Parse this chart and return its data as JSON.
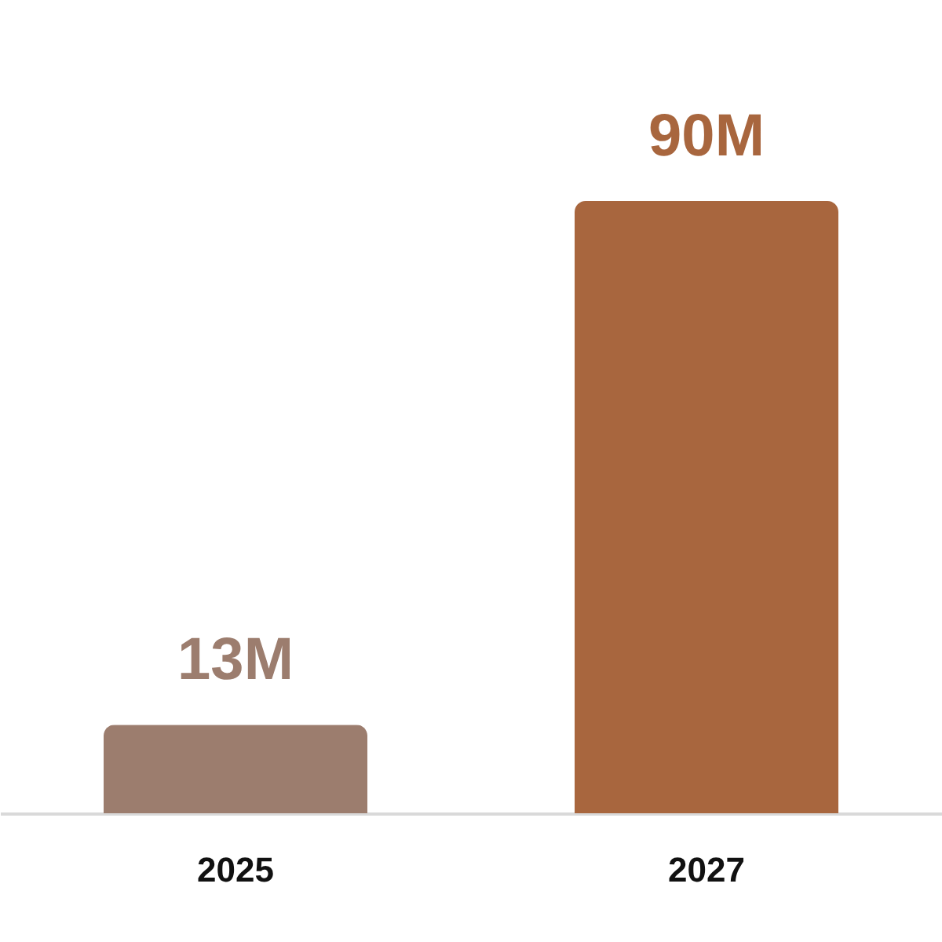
{
  "chart_data": {
    "type": "bar",
    "categories": [
      "2025",
      "2027"
    ],
    "values": [
      13,
      90
    ],
    "colors": [
      "#9c7d6e",
      "#a8663e"
    ],
    "value_labels": [
      "13M",
      "90M"
    ],
    "grid": false
  }
}
